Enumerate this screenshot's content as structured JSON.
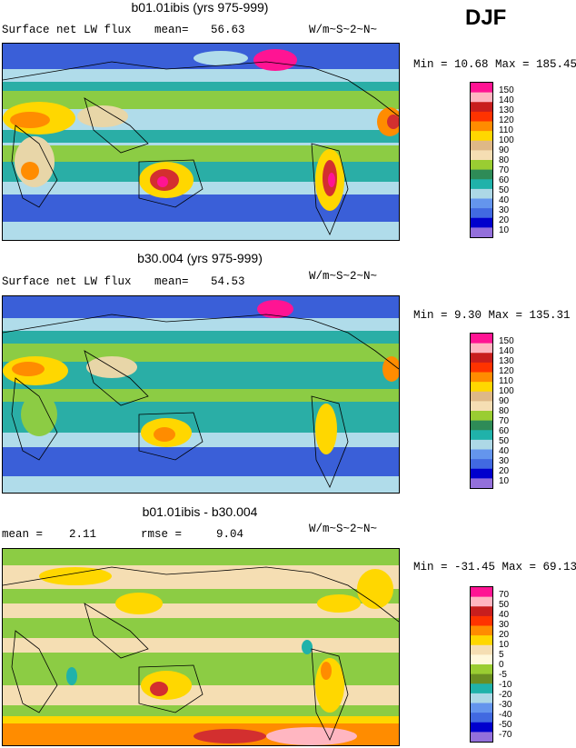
{
  "season": "DJF",
  "panels": [
    {
      "title": "b01.01ibis (yrs 975-999)",
      "left_label": "Surface net LW flux",
      "mean_label": "mean=",
      "mean_value": "56.63",
      "units": "W/m~S~2~N~",
      "min_max": "Min =  10.68 Max = 185.45",
      "levels": [
        "150",
        "140",
        "130",
        "120",
        "110",
        "100",
        "90",
        "80",
        "70",
        "60",
        "50",
        "40",
        "30",
        "20",
        "10"
      ],
      "colors": [
        "#ff1493",
        "#ffb6c1",
        "#c81e1e",
        "#ff3300",
        "#ff8c00",
        "#ffd700",
        "#deb887",
        "#f5deb3",
        "#9acd32",
        "#2e8b57",
        "#20b2aa",
        "#add8e6",
        "#6495ed",
        "#4169e1",
        "#0000cd",
        "#9370db"
      ]
    },
    {
      "title": "b30.004 (yrs 975-999)",
      "left_label": "Surface net LW flux",
      "mean_label": "mean=",
      "mean_value": "54.53",
      "units": "W/m~S~2~N~",
      "min_max": "Min =   9.30 Max = 135.31",
      "levels": [
        "150",
        "140",
        "130",
        "120",
        "110",
        "100",
        "90",
        "80",
        "70",
        "60",
        "50",
        "40",
        "30",
        "20",
        "10"
      ],
      "colors": [
        "#ff1493",
        "#ffb6c1",
        "#c81e1e",
        "#ff3300",
        "#ff8c00",
        "#ffd700",
        "#deb887",
        "#f5deb3",
        "#9acd32",
        "#2e8b57",
        "#20b2aa",
        "#add8e6",
        "#6495ed",
        "#4169e1",
        "#0000cd",
        "#9370db"
      ]
    },
    {
      "title": "b01.01ibis - b30.004",
      "mean_label": "mean =",
      "mean_value": "2.11",
      "rmse_label": "rmse =",
      "rmse_value": "9.04",
      "units": "W/m~S~2~N~",
      "min_max": "Min = -31.45 Max =  69.13",
      "levels": [
        "70",
        "50",
        "40",
        "30",
        "20",
        "10",
        "5",
        "0",
        "-5",
        "-10",
        "-20",
        "-30",
        "-40",
        "-50",
        "-70"
      ],
      "colors": [
        "#ff1493",
        "#ffb6c1",
        "#c81e1e",
        "#ff3300",
        "#ff8c00",
        "#ffd700",
        "#f5deb3",
        "#fff8dc",
        "#9acd32",
        "#6b8e23",
        "#20b2aa",
        "#add8e6",
        "#6495ed",
        "#4169e1",
        "#0000cd",
        "#9370db"
      ]
    }
  ],
  "field_colors": {
    "deep_blue": "#3a5fd8",
    "light_blue": "#b0dcea",
    "teal": "#2aaea6",
    "green": "#8ccc44",
    "tan": "#e8d6a8",
    "yellow": "#ffd700",
    "orange": "#ff8c00",
    "red": "#d32f2f",
    "pink": "#ff1493",
    "cream": "#f5deb3"
  }
}
